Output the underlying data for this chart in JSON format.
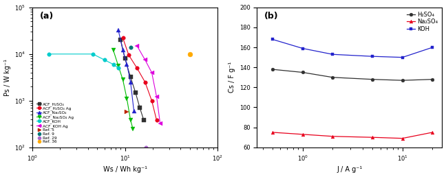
{
  "panel_a": {
    "series": [
      {
        "label": "ACF_H₂SO₄",
        "color": "#303030",
        "marker": "s",
        "markersize": 4,
        "linestyle": "-",
        "ws": [
          9.0,
          10.0,
          11.5,
          13.0,
          14.5,
          16.0
        ],
        "ps": [
          20000,
          8000,
          3200,
          1500,
          700,
          380
        ]
      },
      {
        "label": "ACF_H₂SO₄ Ag",
        "color": "#e8001c",
        "marker": "o",
        "markersize": 4,
        "linestyle": "-",
        "ws": [
          9.5,
          11.0,
          13.5,
          16.5,
          19.5,
          22.0
        ],
        "ps": [
          22000,
          9500,
          5000,
          2500,
          1000,
          380
        ]
      },
      {
        "label": "ACF_Na₂SO₄",
        "color": "#2222cc",
        "marker": "^",
        "markersize": 4,
        "linestyle": "-",
        "ws": [
          8.5,
          9.5,
          10.5,
          11.5,
          12.5
        ],
        "ps": [
          32000,
          12000,
          6000,
          2500,
          600
        ]
      },
      {
        "label": "ACF_Na₂SO₄ Ag",
        "color": "#00bb00",
        "marker": "v",
        "markersize": 4,
        "linestyle": "-",
        "ws": [
          7.5,
          8.5,
          9.5,
          10.5,
          11.5,
          12.2
        ],
        "ps": [
          12000,
          5500,
          2800,
          1100,
          380,
          250
        ]
      },
      {
        "label": "ACF_KOH",
        "color": "#00cccc",
        "marker": "o",
        "markersize": 4,
        "linestyle": "-",
        "ws": [
          1.5,
          4.5,
          6.0,
          7.5,
          8.5
        ],
        "ps": [
          10000,
          10000,
          7500,
          6000,
          5000
        ]
      },
      {
        "label": "ACF_KOH Ag",
        "color": "#dd00dd",
        "marker": "<",
        "markersize": 4,
        "linestyle": "-",
        "ws": [
          13.5,
          16.5,
          19.5,
          22.0,
          24.0
        ],
        "ps": [
          15000,
          7500,
          4000,
          1200,
          330
        ]
      },
      {
        "label": "Ref. 5",
        "color": "#bb2200",
        "marker": ">",
        "markersize": 4,
        "linestyle": "none",
        "ws": [
          10.5
        ],
        "ps": [
          580
        ]
      },
      {
        "label": "Ref. 9",
        "color": "#007777",
        "marker": "o",
        "markersize": 4,
        "linestyle": "none",
        "ws": [
          11.5
        ],
        "ps": [
          14000
        ]
      },
      {
        "label": "Ref. 29",
        "color": "#aa66cc",
        "marker": "o",
        "markersize": 4,
        "linestyle": "none",
        "ws": [
          17.0
        ],
        "ps": [
          100
        ]
      },
      {
        "label": "Ref. 36",
        "color": "#ffaa00",
        "marker": "o",
        "markersize": 5,
        "linestyle": "none",
        "ws": [
          50.0
        ],
        "ps": [
          10000
        ]
      }
    ],
    "xlabel": "Ws / Wh kg⁻¹",
    "ylabel": "Ps / W kg⁻¹",
    "xlim": [
      1.0,
      100.0
    ],
    "ylim": [
      100,
      100000
    ],
    "panel_label": "(a)"
  },
  "panel_b": {
    "series": [
      {
        "label": "H₂SO₄",
        "color": "#303030",
        "marker": "o",
        "markersize": 3.5,
        "linestyle": "-",
        "j": [
          0.5,
          1.0,
          2.0,
          5.0,
          10.0,
          20.0
        ],
        "cs": [
          138,
          135,
          130,
          128,
          127,
          128
        ]
      },
      {
        "label": "Na₂SO₄",
        "color": "#e8001c",
        "marker": "^",
        "markersize": 3.5,
        "linestyle": "-",
        "j": [
          0.5,
          1.0,
          2.0,
          5.0,
          10.0,
          20.0
        ],
        "cs": [
          75,
          73,
          71,
          70,
          69,
          75
        ]
      },
      {
        "label": "KOH",
        "color": "#2222cc",
        "marker": "s",
        "markersize": 3.5,
        "linestyle": "-",
        "j": [
          0.5,
          1.0,
          2.0,
          5.0,
          10.0,
          20.0
        ],
        "cs": [
          168,
          159,
          153,
          151,
          150,
          160
        ]
      }
    ],
    "xlabel": "J / A g⁻¹",
    "ylabel": "Cs / F g⁻¹",
    "xlim": [
      0.35,
      25.0
    ],
    "ylim": [
      60,
      200
    ],
    "yticks": [
      60,
      80,
      100,
      120,
      140,
      160,
      180,
      200
    ],
    "panel_label": "(b)"
  }
}
